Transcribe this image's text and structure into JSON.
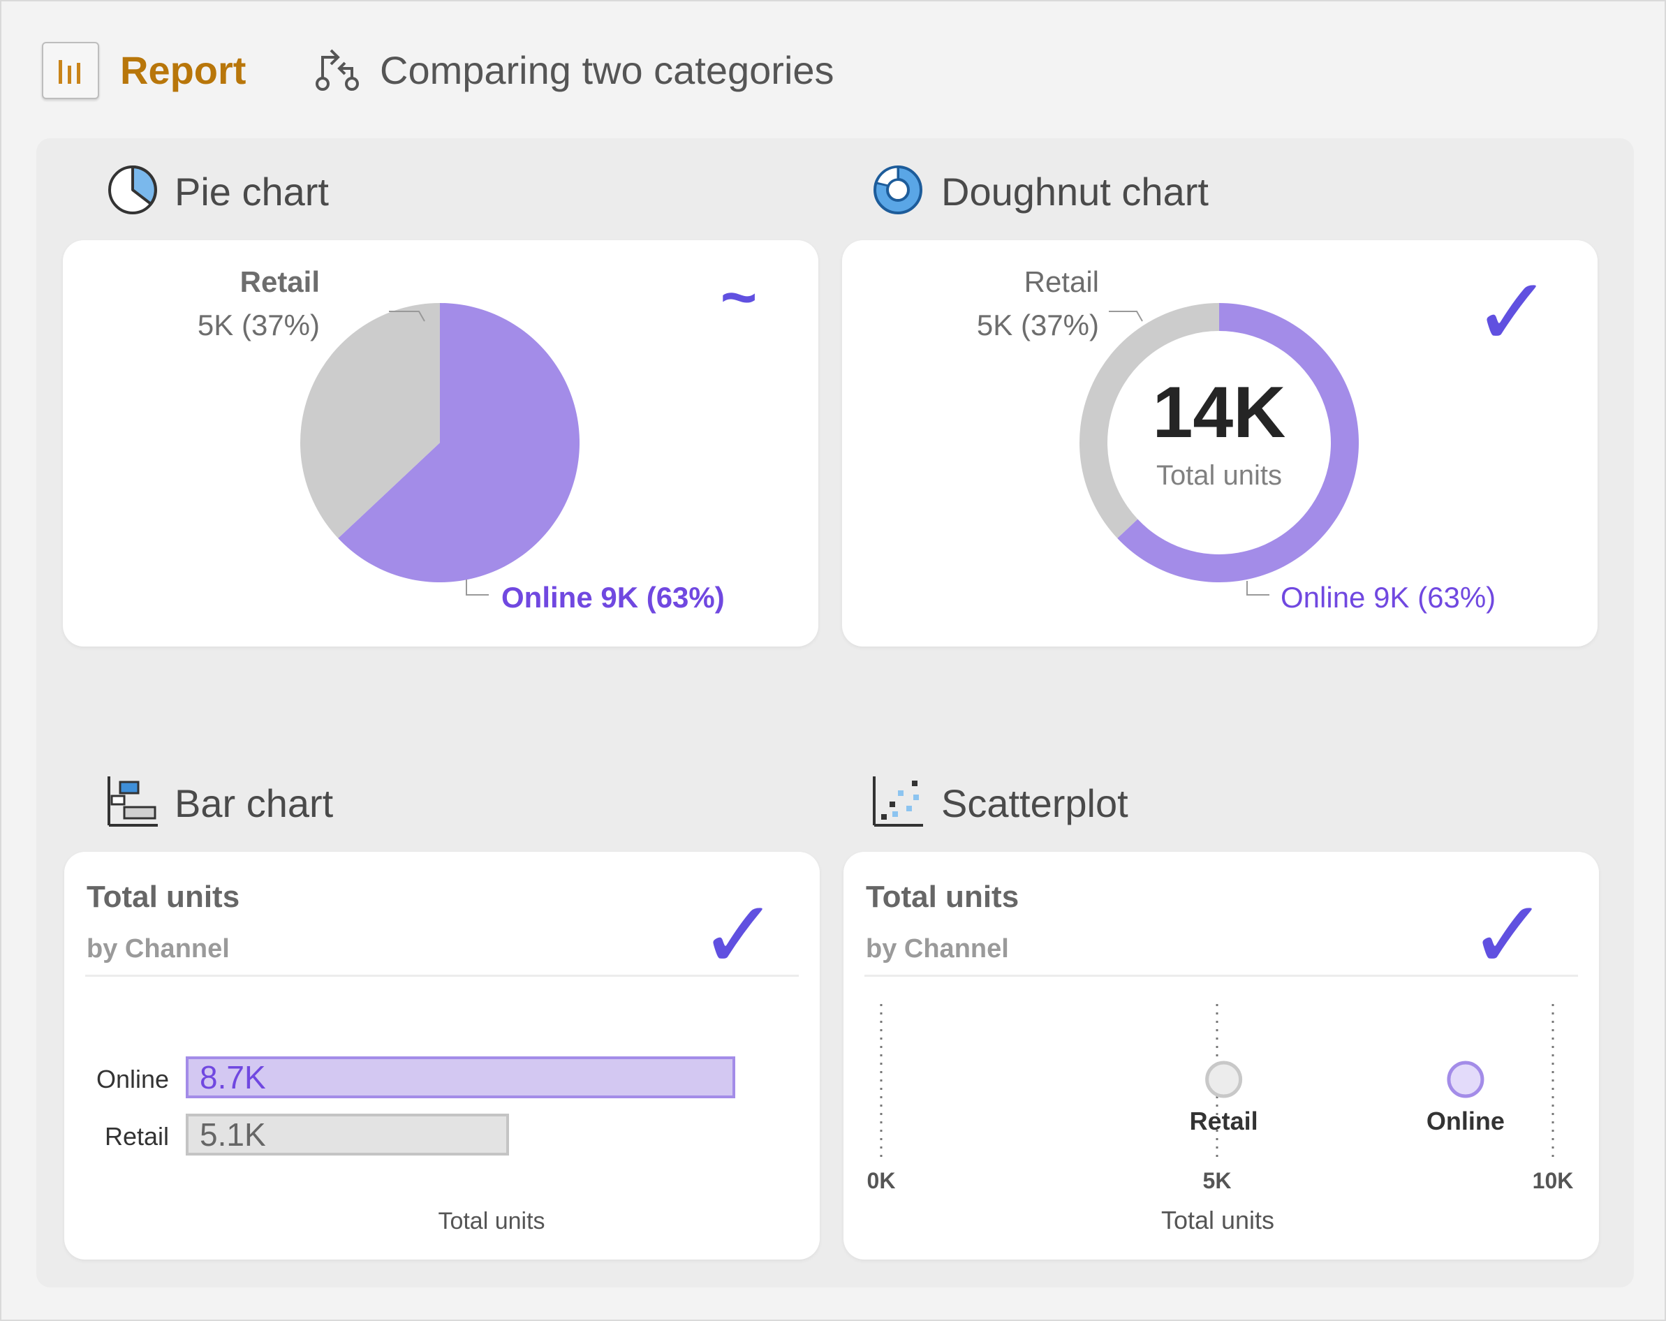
{
  "header": {
    "report_label": "Report",
    "page_title": "Comparing two categories",
    "accent_color": "#b8760a"
  },
  "sections": {
    "pie": {
      "title": "Pie chart",
      "rating": "~"
    },
    "doughnut": {
      "title": "Doughnut chart",
      "rating": "✓"
    },
    "bar": {
      "title": "Bar chart",
      "rating": "✓"
    },
    "scatter": {
      "title": "Scatterplot",
      "rating": "✓"
    }
  },
  "colors": {
    "online": "#a38ce8",
    "retail": "#cccccc",
    "online_text": "#7048e0",
    "retail_text": "#6d6d6d",
    "check": "#6050e0"
  },
  "chart_data": [
    {
      "id": "pie",
      "type": "pie",
      "slices": [
        {
          "name": "Online",
          "value": 9,
          "percent": 63,
          "label": "Online 9K (63%)"
        },
        {
          "name": "Retail",
          "value": 5,
          "percent": 37,
          "label_name": "Retail",
          "label_value": "5K (37%)"
        }
      ]
    },
    {
      "id": "doughnut",
      "type": "pie",
      "center_value": "14K",
      "center_label": "Total units",
      "slices": [
        {
          "name": "Online",
          "value": 9,
          "percent": 63,
          "label": "Online 9K (63%)"
        },
        {
          "name": "Retail",
          "value": 5,
          "percent": 37,
          "label_name": "Retail",
          "label_value": "5K (37%)"
        }
      ]
    },
    {
      "id": "bar",
      "type": "bar",
      "title": "Total units",
      "subtitle": "by Channel",
      "xlabel": "Total units",
      "categories": [
        "Online",
        "Retail"
      ],
      "values": [
        8.7,
        5.1
      ],
      "value_labels": [
        "8.7K",
        "5.1K"
      ]
    },
    {
      "id": "scatter",
      "type": "scatter",
      "title": "Total units",
      "subtitle": "by Channel",
      "xlabel": "Total units",
      "xlim": [
        0,
        10
      ],
      "xticks": [
        0,
        5,
        10
      ],
      "xtick_labels": [
        "0K",
        "5K",
        "10K"
      ],
      "points": [
        {
          "name": "Retail",
          "x": 5.1
        },
        {
          "name": "Online",
          "x": 8.7
        }
      ]
    }
  ]
}
